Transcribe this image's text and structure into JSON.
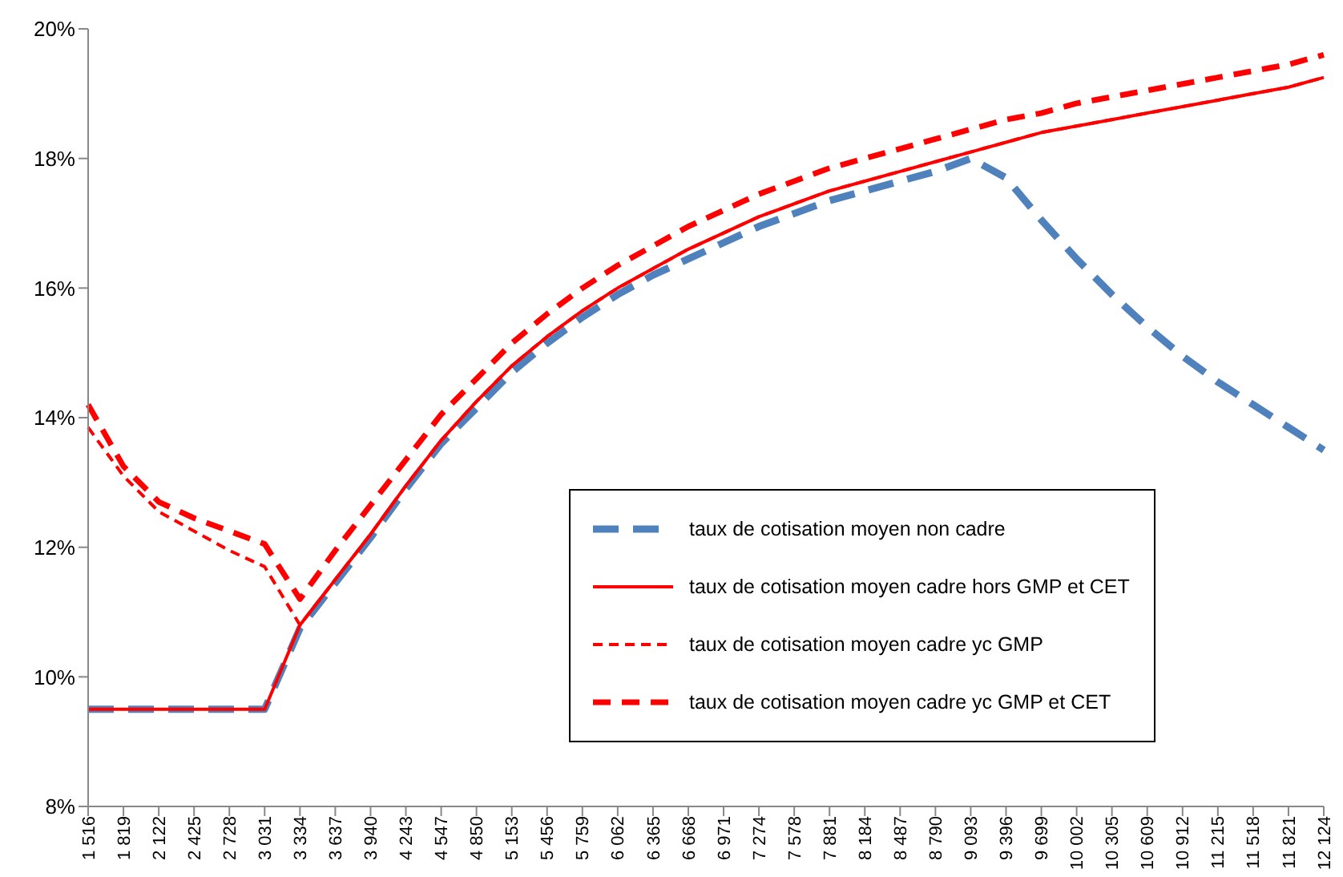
{
  "chart_data": {
    "type": "line",
    "categories": [
      "1 516",
      "1 819",
      "2 122",
      "2 425",
      "2 728",
      "3 031",
      "3 334",
      "3 637",
      "3 940",
      "4 243",
      "4 547",
      "4 850",
      "5 153",
      "5 456",
      "5 759",
      "6 062",
      "6 365",
      "6 668",
      "6 971",
      "7 274",
      "7 578",
      "7 881",
      "8 184",
      "8 487",
      "8 790",
      "9 093",
      "9 396",
      "9 699",
      "10 002",
      "10 305",
      "10 609",
      "10 912",
      "11 215",
      "11 518",
      "11 821",
      "12 124"
    ],
    "series": [
      {
        "name": "taux de cotisation moyen non cadre",
        "color": "#4f81bd",
        "line_style": "dashed",
        "values": [
          9.5,
          9.5,
          9.5,
          9.5,
          9.5,
          9.5,
          10.75,
          11.45,
          12.15,
          12.9,
          13.6,
          14.15,
          14.7,
          15.15,
          15.55,
          15.9,
          16.2,
          16.45,
          16.7,
          16.95,
          17.15,
          17.35,
          17.5,
          17.65,
          17.8,
          18.0,
          17.7,
          17.05,
          16.45,
          15.9,
          15.4,
          14.95,
          14.55,
          14.2,
          13.85,
          13.5
        ]
      },
      {
        "name": "taux de cotisation moyen  cadre hors GMP et CET",
        "color": "#ff0000",
        "line_style": "solid",
        "values": [
          9.5,
          9.5,
          9.5,
          9.5,
          9.5,
          9.5,
          10.8,
          11.5,
          12.2,
          12.95,
          13.65,
          14.25,
          14.8,
          15.25,
          15.65,
          16.0,
          16.3,
          16.6,
          16.85,
          17.1,
          17.3,
          17.5,
          17.65,
          17.8,
          17.95,
          18.1,
          18.25,
          18.4,
          18.5,
          18.6,
          18.7,
          18.8,
          18.9,
          19.0,
          19.1,
          19.25
        ]
      },
      {
        "name": "taux de cotisation moyen  cadre yc GMP",
        "color": "#ff0000",
        "line_style": "dashed",
        "values": [
          13.85,
          13.1,
          12.55,
          12.25,
          11.95,
          11.7,
          10.8,
          11.5,
          12.2,
          12.95,
          13.65,
          14.25,
          14.8,
          15.25,
          15.65,
          16.0,
          16.3,
          16.6,
          16.85,
          17.1,
          17.3,
          17.5,
          17.65,
          17.8,
          17.95,
          18.1,
          18.25,
          18.4,
          18.5,
          18.6,
          18.7,
          18.8,
          18.9,
          19.0,
          19.1,
          19.25
        ]
      },
      {
        "name": "taux de cotisation moyen  cadre yc GMP et CET",
        "color": "#ff0000",
        "line_style": "dashed",
        "values": [
          14.2,
          13.25,
          12.7,
          12.45,
          12.25,
          12.05,
          11.2,
          11.95,
          12.65,
          13.35,
          14.05,
          14.6,
          15.15,
          15.6,
          16.0,
          16.35,
          16.65,
          16.95,
          17.2,
          17.45,
          17.65,
          17.85,
          18.0,
          18.15,
          18.3,
          18.45,
          18.6,
          18.7,
          18.85,
          18.95,
          19.05,
          19.15,
          19.25,
          19.35,
          19.45,
          19.6
        ]
      }
    ],
    "ylim": [
      8,
      20
    ],
    "yticks": [
      {
        "value": 8,
        "label": "8%"
      },
      {
        "value": 10,
        "label": "10%"
      },
      {
        "value": 12,
        "label": "12%"
      },
      {
        "value": 14,
        "label": "14%"
      },
      {
        "value": 16,
        "label": "16%"
      },
      {
        "value": 18,
        "label": "18%"
      },
      {
        "value": 20,
        "label": "20%"
      }
    ],
    "grid": false,
    "legend": "right",
    "marker": "none"
  }
}
